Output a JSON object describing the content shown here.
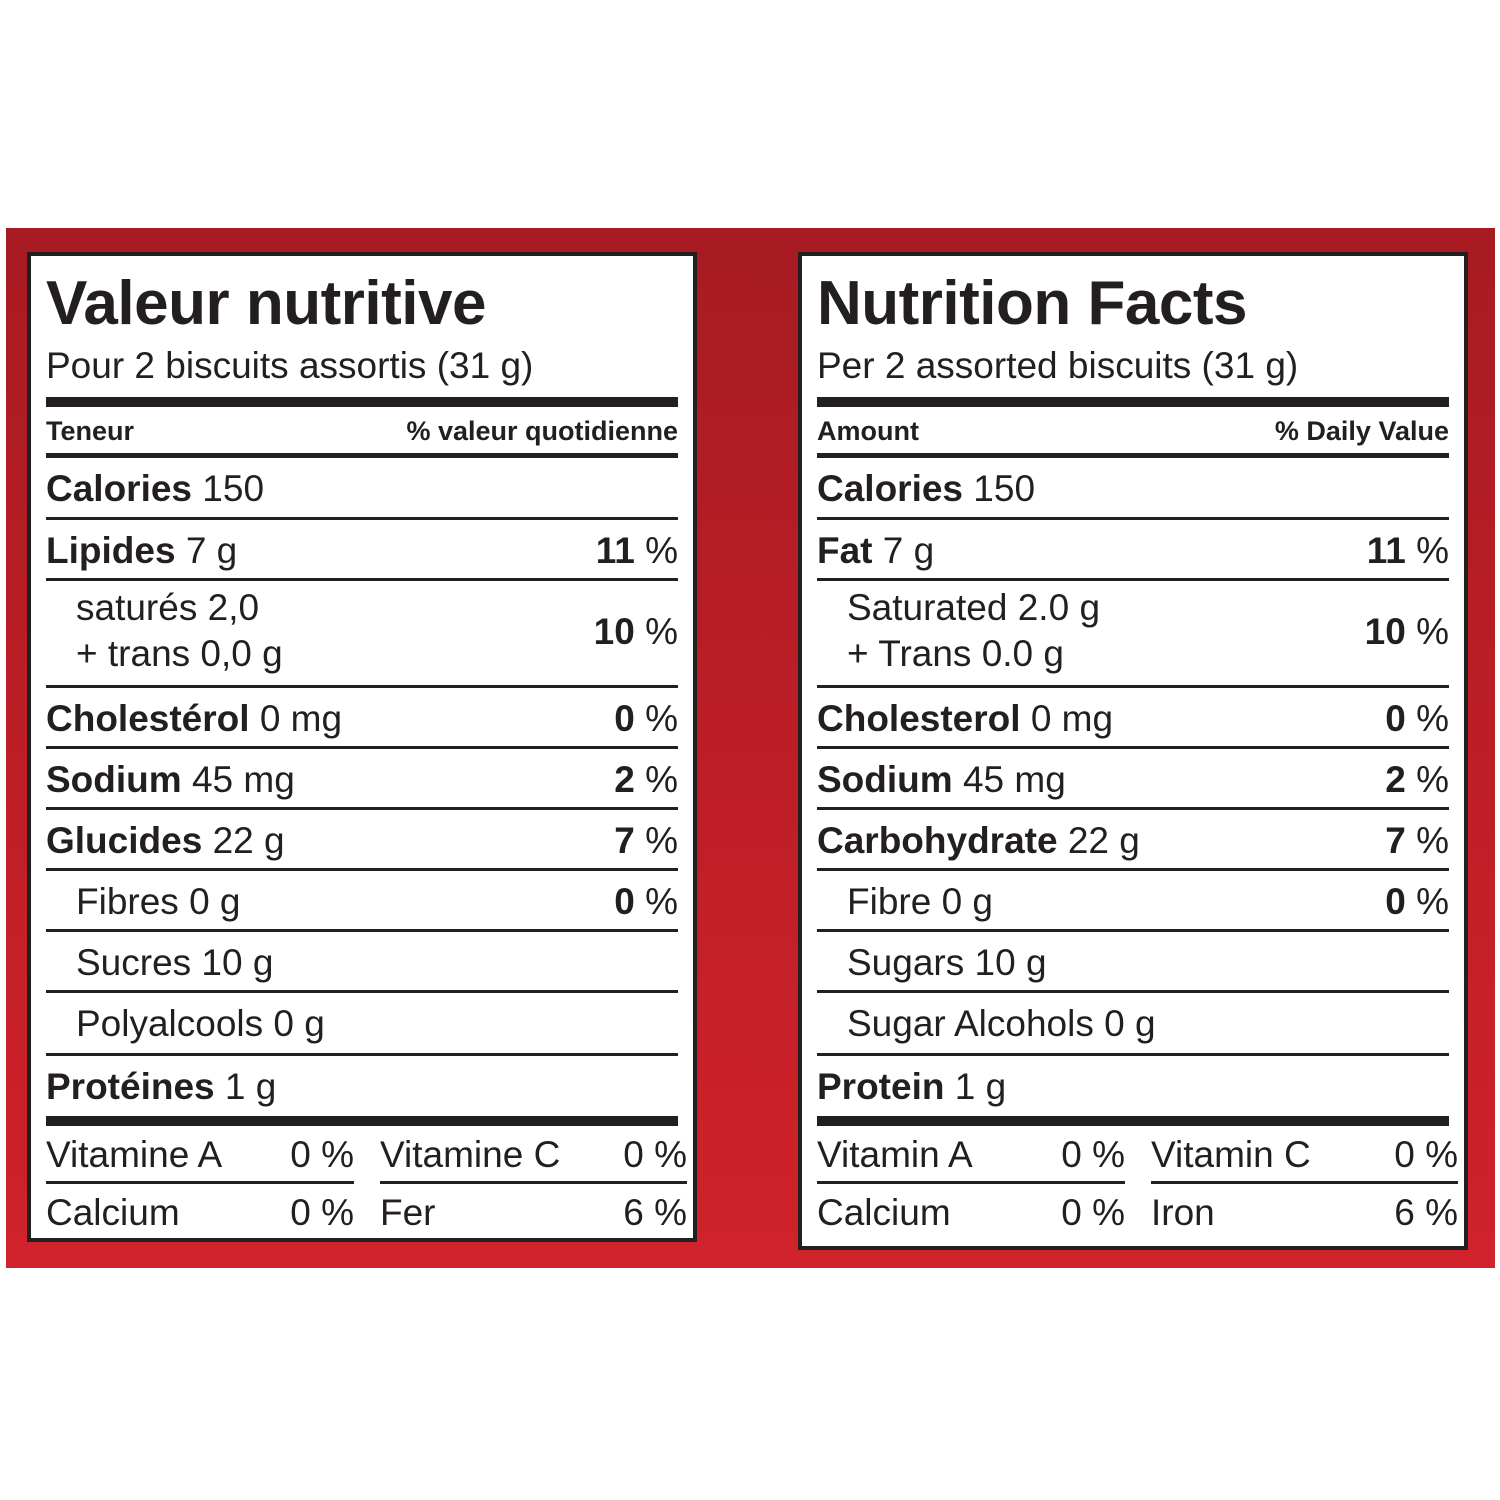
{
  "french": {
    "title": "Valeur nutritive",
    "serving": "Pour 2 biscuits assortis (31 g)",
    "header_left": "Teneur",
    "header_right": "% valeur quotidienne",
    "calories_label": "Calories",
    "calories_value": "150",
    "fat_label": "Lipides",
    "fat_amount": "7 g",
    "fat_dv_num": "11",
    "sat_line1": "saturés 2,0",
    "sat_line2": "+ trans 0,0 g",
    "sat_dv_num": "10",
    "chol_label": "Cholestérol",
    "chol_amount": "0 mg",
    "chol_dv_num": "0",
    "sodium_label": "Sodium",
    "sodium_amount": "45 mg",
    "sodium_dv_num": "2",
    "carb_label": "Glucides",
    "carb_amount": "22 g",
    "carb_dv_num": "7",
    "fibre": "Fibres 0 g",
    "fibre_dv_num": "0",
    "sugars": "Sucres 10 g",
    "sugar_alcohols": "Polyalcools 0 g",
    "protein_label": "Protéines",
    "protein_amount": "1 g",
    "vitamin_a": "Vitamine A",
    "vitamin_a_dv": "0 %",
    "vitamin_c": "Vitamine C",
    "vitamin_c_dv": "0 %",
    "calcium": "Calcium",
    "calcium_dv": "0 %",
    "iron": "Fer",
    "iron_dv": "6 %",
    "pct": "%"
  },
  "english": {
    "title": "Nutrition Facts",
    "serving": "Per 2 assorted biscuits (31 g)",
    "header_left": "Amount",
    "header_right": "% Daily Value",
    "calories_label": "Calories",
    "calories_value": "150",
    "fat_label": "Fat",
    "fat_amount": "7 g",
    "fat_dv_num": "11",
    "sat_line1": "Saturated 2.0 g",
    "sat_line2": "+ Trans 0.0 g",
    "sat_dv_num": "10",
    "chol_label": "Cholesterol",
    "chol_amount": "0 mg",
    "chol_dv_num": "0",
    "sodium_label": "Sodium",
    "sodium_amount": "45 mg",
    "sodium_dv_num": "2",
    "carb_label": "Carbohydrate",
    "carb_amount": "22 g",
    "carb_dv_num": "7",
    "fibre": "Fibre 0 g",
    "fibre_dv_num": "0",
    "sugars": "Sugars 10 g",
    "sugar_alcohols": "Sugar Alcohols 0 g",
    "protein_label": "Protein",
    "protein_amount": "1 g",
    "vitamin_a": "Vitamin A",
    "vitamin_a_dv": "0 %",
    "vitamin_c": "Vitamin C",
    "vitamin_c_dv": "0 %",
    "calcium": "Calcium",
    "calcium_dv": "0 %",
    "iron": "Iron",
    "iron_dv": "6 %",
    "pct": "%"
  },
  "colors": {
    "background_band": "#c21f27",
    "ink": "#231f20"
  }
}
